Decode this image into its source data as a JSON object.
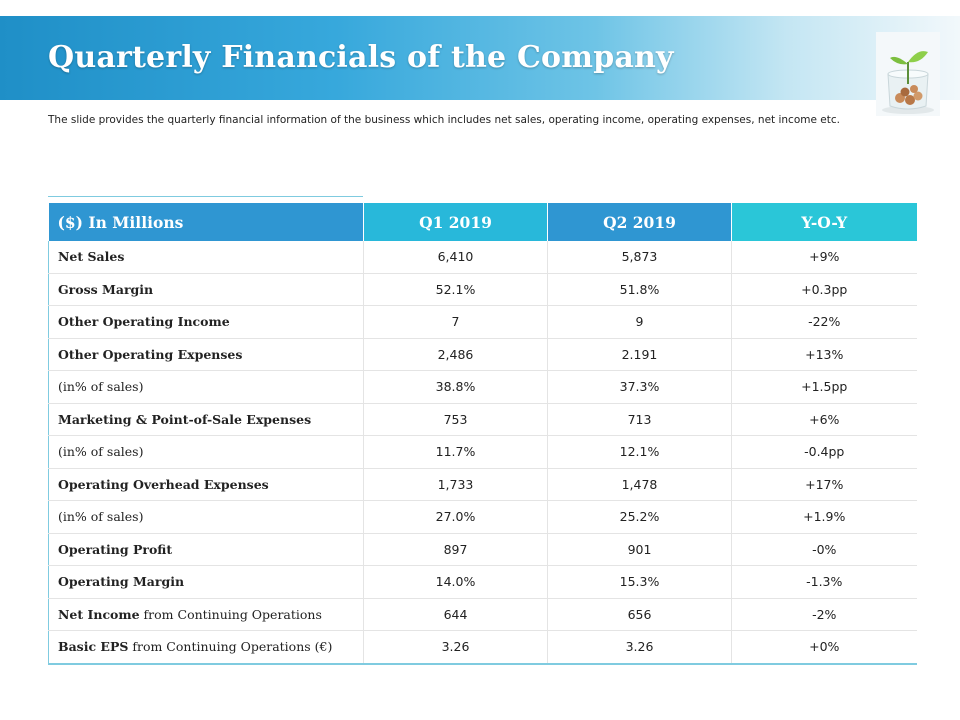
{
  "title": "Quarterly Financials of the Company",
  "subtitle": "The slide provides the quarterly  financial information of the business which includes net sales, operating  income, operating  expenses,  net income etc.",
  "table": {
    "headers": [
      "($) In Millions",
      "Q1 2019",
      "Q2 2019",
      "Y-O-Y"
    ],
    "rows": [
      {
        "label": "Net Sales",
        "q1": "6,410",
        "q2": "5,873",
        "yoy": "+9%"
      },
      {
        "label": "Gross Margin",
        "q1": "52.1%",
        "q2": "51.8%",
        "yoy": "+0.3pp"
      },
      {
        "label": "Other Operating Income",
        "q1": "7",
        "q2": "9",
        "yoy": "-22%"
      },
      {
        "label": "Other Operating Expenses",
        "q1": "2,486",
        "q2": "2.191",
        "yoy": "+13%"
      },
      {
        "label": "(in% of sales)",
        "q1": "38.8%",
        "q2": "37.3%",
        "yoy": "+1.5pp"
      },
      {
        "label": "Marketing & Point-of-Sale Expenses",
        "q1": "753",
        "q2": "713",
        "yoy": "+6%"
      },
      {
        "label": "(in% of sales)",
        "q1": "11.7%",
        "q2": "12.1%",
        "yoy": "-0.4pp"
      },
      {
        "label": "Operating Overhead Expenses",
        "q1": "1,733",
        "q2": "1,478",
        "yoy": "+17%"
      },
      {
        "label": "(in% of sales)",
        "q1": "27.0%",
        "q2": "25.2%",
        "yoy": "+1.9%"
      },
      {
        "label": "Operating Profit",
        "q1": "897",
        "q2": "901",
        "yoy": "-0%"
      },
      {
        "label": "Operating Margin",
        "q1": "14.0%",
        "q2": "15.3%",
        "yoy": "-1.3%"
      },
      {
        "label_bold": "Net Income",
        "label_rest": " from Continuing Operations",
        "q1": "644",
        "q2": "656",
        "yoy": "-2%"
      },
      {
        "label_bold": "Basic EPS",
        "label_rest": " from Continuing  Operations (€)",
        "q1": "3.26",
        "q2": "3.26",
        "yoy": "+0%"
      }
    ]
  },
  "colors": {
    "header_blue": "#2f96d2",
    "header_teal": "#2ac6d8",
    "accent_line": "#7fcbe0"
  }
}
